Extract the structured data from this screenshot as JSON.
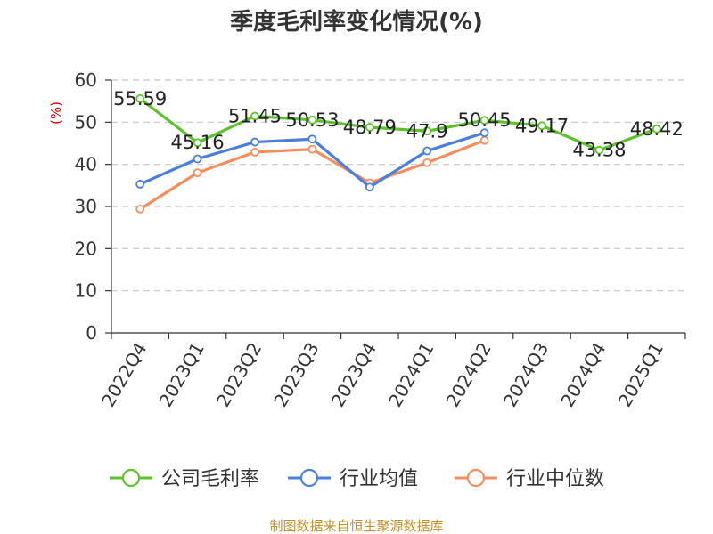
{
  "chart_data": {
    "type": "line",
    "title": "季度毛利率变化情况(%)",
    "ylabel": "(%)",
    "ylim": [
      0,
      60
    ],
    "yticks": [
      0,
      10,
      20,
      30,
      40,
      50,
      60
    ],
    "grid": true,
    "legend_position": "bottom",
    "categories": [
      "2022Q4",
      "2023Q1",
      "2023Q2",
      "2023Q3",
      "2023Q4",
      "2024Q1",
      "2024Q2",
      "2024Q3",
      "2024Q4",
      "2025Q1"
    ],
    "series": [
      {
        "name": "公司毛利率",
        "color": "#5cc12a",
        "values": [
          55.59,
          45.16,
          51.45,
          50.53,
          48.79,
          47.9,
          50.45,
          49.17,
          43.38,
          48.42
        ],
        "labels": [
          "55.59",
          "45.16",
          "51.45",
          "50.53",
          "48.79",
          "47.9",
          "50.45",
          "49.17",
          "43.38",
          "48.42"
        ]
      },
      {
        "name": "行业均值",
        "color": "#4a7fdc",
        "values": [
          35.3,
          41.3,
          45.3,
          46.0,
          34.6,
          43.2,
          47.5,
          null,
          null,
          null
        ]
      },
      {
        "name": "行业中位数",
        "color": "#f58d5c",
        "values": [
          29.4,
          38.0,
          42.9,
          43.6,
          35.6,
          40.4,
          45.7,
          null,
          null,
          null
        ]
      }
    ]
  },
  "source_text": "制图数据来自恒生聚源数据库"
}
